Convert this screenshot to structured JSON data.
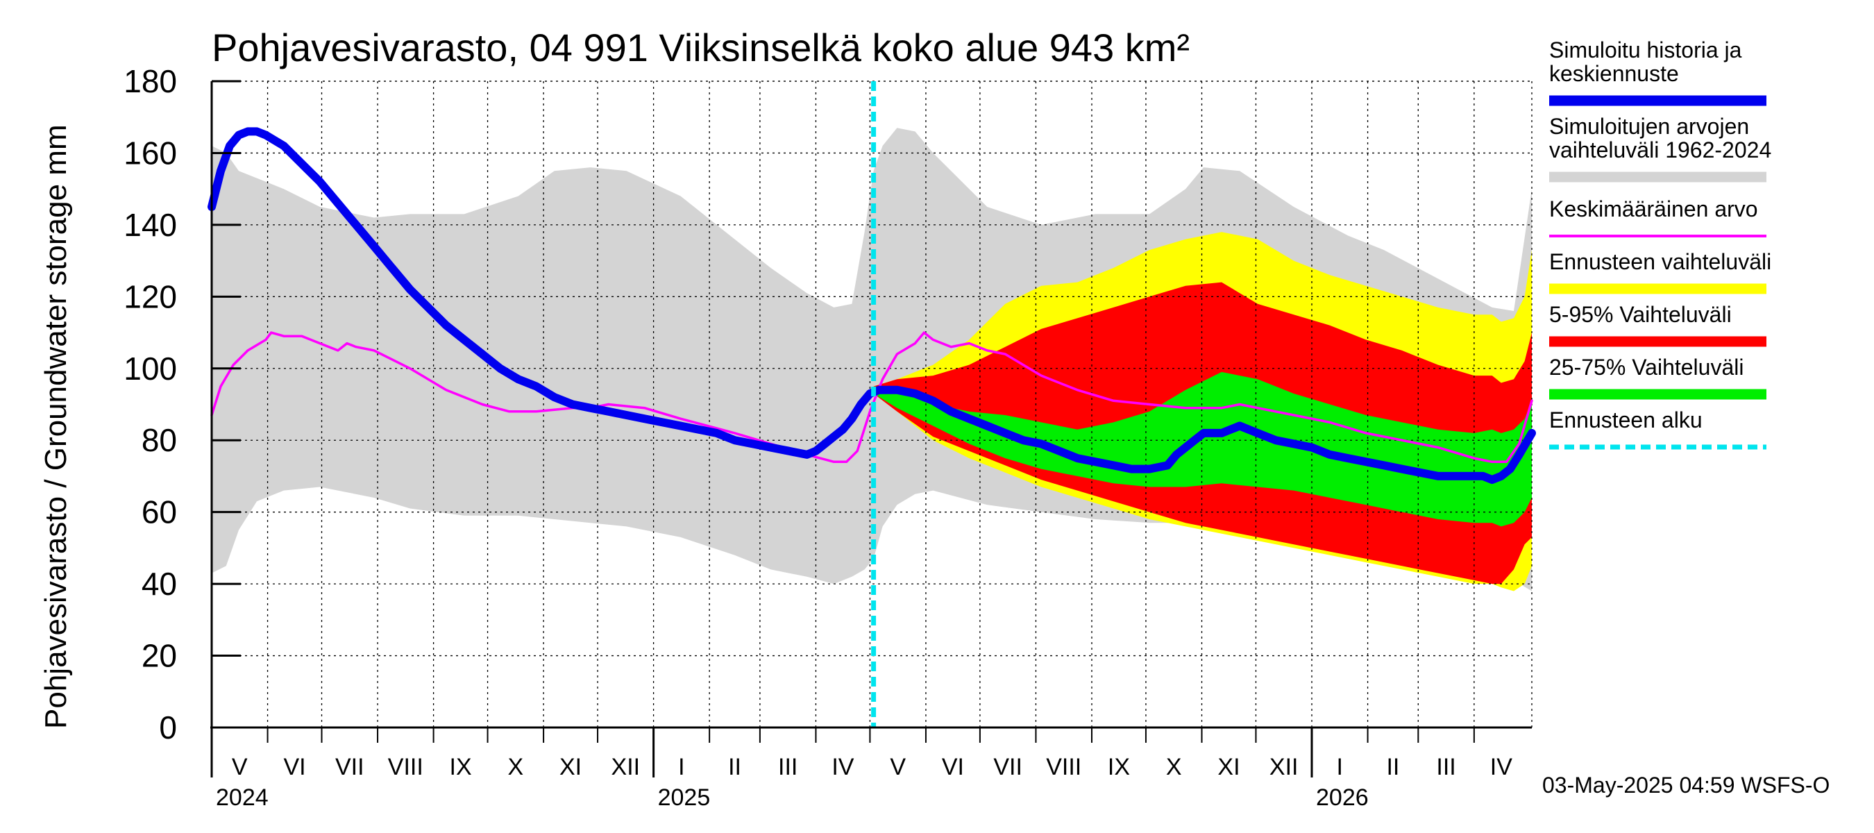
{
  "chart_data": {
    "type": "area",
    "title": "Pohjavesivarasto, 04 991 Viiksinselkä koko alue 943 km²",
    "ylabel": "Pohjavesivarasto / Groundwater storage   mm",
    "ylim": [
      0,
      180
    ],
    "yticks": [
      "0",
      "20",
      "40",
      "60",
      "80",
      "100",
      "120",
      "140",
      "160",
      "180"
    ],
    "months": [
      {
        "label": "V",
        "start": 0,
        "end": 31
      },
      {
        "label": "VI",
        "start": 31,
        "end": 61
      },
      {
        "label": "VII",
        "start": 61,
        "end": 92
      },
      {
        "label": "VIII",
        "start": 92,
        "end": 123
      },
      {
        "label": "IX",
        "start": 123,
        "end": 153
      },
      {
        "label": "X",
        "start": 153,
        "end": 184
      },
      {
        "label": "XI",
        "start": 184,
        "end": 214
      },
      {
        "label": "XII",
        "start": 214,
        "end": 245
      },
      {
        "label": "I",
        "start": 245,
        "end": 276
      },
      {
        "label": "II",
        "start": 276,
        "end": 304
      },
      {
        "label": "III",
        "start": 304,
        "end": 335
      },
      {
        "label": "IV",
        "start": 335,
        "end": 365
      },
      {
        "label": "V",
        "start": 365,
        "end": 396
      },
      {
        "label": "VI",
        "start": 396,
        "end": 426
      },
      {
        "label": "VII",
        "start": 426,
        "end": 457
      },
      {
        "label": "VIII",
        "start": 457,
        "end": 488
      },
      {
        "label": "IX",
        "start": 488,
        "end": 518
      },
      {
        "label": "X",
        "start": 518,
        "end": 549
      },
      {
        "label": "XI",
        "start": 549,
        "end": 579
      },
      {
        "label": "XII",
        "start": 579,
        "end": 610
      },
      {
        "label": "I",
        "start": 610,
        "end": 641
      },
      {
        "label": "II",
        "start": 641,
        "end": 669
      },
      {
        "label": "III",
        "start": 669,
        "end": 700
      },
      {
        "label": "IV",
        "start": 700,
        "end": 730
      }
    ],
    "years": [
      {
        "label": "2024",
        "day": 0
      },
      {
        "label": "2025",
        "day": 245
      },
      {
        "label": "2026",
        "day": 610
      }
    ],
    "x_range_days": [
      0,
      732
    ],
    "forecast_start_day": 367,
    "series": [
      {
        "name": "Simuloitujen arvojen vaihteluväli 1962-2024",
        "kind": "band",
        "color": "#d4d4d4",
        "x": [
          0,
          8,
          15,
          25,
          40,
          60,
          90,
          110,
          140,
          170,
          190,
          210,
          230,
          260,
          290,
          310,
          330,
          345,
          355,
          362,
          367,
          372,
          380,
          390,
          400,
          430,
          460,
          490,
          520,
          540,
          550,
          570,
          600,
          630,
          650,
          680,
          710,
          722,
          732
        ],
        "upper": [
          162,
          160,
          155,
          153,
          150,
          145,
          142,
          143,
          143,
          148,
          155,
          156,
          155,
          148,
          136,
          128,
          121,
          117,
          118,
          138,
          155,
          162,
          167,
          166,
          160,
          145,
          140,
          143,
          143,
          150,
          156,
          155,
          145,
          137,
          133,
          125,
          117,
          116,
          150
        ],
        "lower": [
          43,
          45,
          55,
          63,
          66,
          67,
          64,
          61,
          59,
          59,
          58,
          57,
          56,
          53,
          48,
          44,
          42,
          40,
          42,
          44,
          47,
          56,
          62,
          65,
          66,
          62,
          60,
          58,
          57,
          57,
          56,
          54,
          51,
          48,
          46,
          44,
          42,
          41,
          38
        ]
      },
      {
        "name": "Ennusteen vaihteluväli",
        "kind": "band",
        "color": "#ffff00",
        "x": [
          367,
          380,
          400,
          420,
          440,
          460,
          480,
          500,
          520,
          540,
          560,
          580,
          600,
          620,
          640,
          660,
          680,
          700,
          710,
          715,
          722,
          728,
          732
        ],
        "upper": [
          95,
          97,
          101,
          108,
          118,
          123,
          124,
          128,
          133,
          136,
          138,
          136,
          130,
          126,
          123,
          120,
          117,
          115,
          115,
          113,
          114,
          120,
          133
        ],
        "lower": [
          93,
          88,
          80,
          75,
          71,
          67,
          64,
          61,
          58,
          56,
          54,
          52,
          50,
          48,
          46,
          44,
          42,
          40,
          40,
          39,
          38,
          40,
          45
        ]
      },
      {
        "name": "5-95% Vaihteluväli",
        "kind": "band",
        "color": "#ff0000",
        "x": [
          367,
          380,
          400,
          420,
          440,
          460,
          480,
          500,
          520,
          540,
          560,
          580,
          600,
          620,
          640,
          660,
          680,
          700,
          710,
          715,
          722,
          728,
          732
        ],
        "upper": [
          95,
          97,
          98,
          101,
          106,
          111,
          114,
          117,
          120,
          123,
          124,
          118,
          115,
          112,
          108,
          105,
          101,
          98,
          98,
          96,
          97,
          102,
          110
        ],
        "lower": [
          93,
          88,
          81,
          77,
          73,
          69,
          66,
          63,
          60,
          57,
          55,
          53,
          51,
          49,
          47,
          45,
          43,
          41,
          40,
          40,
          44,
          51,
          53
        ]
      },
      {
        "name": "25-75% Vaihteluväli",
        "kind": "band",
        "color": "#00ee00",
        "x": [
          367,
          380,
          400,
          420,
          440,
          460,
          480,
          500,
          520,
          540,
          560,
          580,
          600,
          620,
          640,
          660,
          680,
          700,
          710,
          715,
          722,
          728,
          732
        ],
        "upper": [
          95,
          94,
          90,
          88,
          87,
          85,
          83,
          85,
          88,
          94,
          99,
          97,
          93,
          90,
          87,
          85,
          83,
          82,
          83,
          82,
          83,
          86,
          91
        ],
        "lower": [
          93,
          89,
          84,
          79,
          75,
          72,
          70,
          68,
          67,
          67,
          68,
          67,
          66,
          64,
          62,
          60,
          58,
          57,
          57,
          56,
          57,
          60,
          64
        ]
      },
      {
        "name": "Keskimääräinen arvo",
        "kind": "line",
        "color": "#ff00ff",
        "x": [
          0,
          5,
          12,
          20,
          30,
          33,
          40,
          50,
          60,
          70,
          75,
          80,
          90,
          110,
          130,
          150,
          165,
          180,
          200,
          210,
          220,
          240,
          260,
          290,
          310,
          330,
          345,
          352,
          358,
          365,
          372,
          380,
          390,
          395,
          400,
          410,
          420,
          430,
          440,
          460,
          480,
          500,
          520,
          540,
          560,
          570,
          580,
          600,
          620,
          640,
          660,
          680,
          700,
          710,
          718,
          725,
          732
        ],
        "y": [
          87,
          95,
          101,
          105,
          108,
          110,
          109,
          109,
          107,
          105,
          107,
          106,
          105,
          100,
          94,
          90,
          88,
          88,
          89,
          89,
          90,
          89,
          86,
          82,
          79,
          76,
          74,
          74,
          77,
          88,
          97,
          104,
          107,
          110,
          108,
          106,
          107,
          105,
          104,
          98,
          94,
          91,
          90,
          89,
          89,
          90,
          89,
          87,
          85,
          82,
          80,
          78,
          75,
          74,
          74,
          79,
          91
        ]
      },
      {
        "name": "Simuloitu historia ja keskiennuste",
        "kind": "line",
        "color": "#0000ee",
        "x": [
          0,
          5,
          10,
          15,
          20,
          25,
          30,
          40,
          50,
          60,
          70,
          80,
          90,
          100,
          110,
          120,
          130,
          140,
          150,
          160,
          170,
          180,
          190,
          200,
          210,
          220,
          230,
          240,
          250,
          260,
          270,
          280,
          290,
          300,
          310,
          320,
          330,
          335,
          340,
          345,
          350,
          355,
          360,
          365,
          370,
          380,
          390,
          400,
          410,
          420,
          430,
          440,
          450,
          460,
          470,
          480,
          490,
          500,
          510,
          520,
          530,
          535,
          540,
          545,
          550,
          555,
          560,
          565,
          570,
          580,
          590,
          600,
          610,
          620,
          630,
          640,
          650,
          660,
          670,
          680,
          690,
          700,
          705,
          710,
          715,
          720,
          725,
          732
        ],
        "y": [
          145,
          155,
          162,
          165,
          166,
          166,
          165,
          162,
          157,
          152,
          146,
          140,
          134,
          128,
          122,
          117,
          112,
          108,
          104,
          100,
          97,
          95,
          92,
          90,
          89,
          88,
          87,
          86,
          85,
          84,
          83,
          82,
          80,
          79,
          78,
          77,
          76,
          77,
          79,
          81,
          83,
          86,
          90,
          93,
          94,
          94,
          93,
          91,
          88,
          86,
          84,
          82,
          80,
          79,
          77,
          75,
          74,
          73,
          72,
          72,
          73,
          76,
          78,
          80,
          82,
          82,
          82,
          83,
          84,
          82,
          80,
          79,
          78,
          76,
          75,
          74,
          73,
          72,
          71,
          70,
          70,
          70,
          70,
          69,
          70,
          72,
          76,
          82
        ]
      },
      {
        "name": "Ennusteen alku",
        "kind": "vline",
        "color": "#00e5ee",
        "day": 367
      }
    ],
    "legend": [
      {
        "label": "Simuloitu historia ja keskiennuste",
        "lines": [
          "Simuloitu historia ja",
          "keskiennuste"
        ],
        "color": "#0000ee",
        "style": "solid"
      },
      {
        "label": "Simuloitujen arvojen vaihteluväli 1962-2024",
        "lines": [
          "Simuloitujen arvojen",
          "vaihteluväli 1962-2024"
        ],
        "color": "#d4d4d4",
        "style": "solid"
      },
      {
        "label": "Keskimääräinen arvo",
        "lines": [
          "Keskimääräinen arvo"
        ],
        "color": "#ff00ff",
        "style": "thin"
      },
      {
        "label": "Ennusteen vaihteluväli",
        "lines": [
          "Ennusteen vaihteluväli"
        ],
        "color": "#ffff00",
        "style": "solid"
      },
      {
        "label": "5-95% Vaihteluväli",
        "lines": [
          "5-95% Vaihteluväli"
        ],
        "color": "#ff0000",
        "style": "solid"
      },
      {
        "label": "25-75% Vaihteluväli",
        "lines": [
          "25-75% Vaihteluväli"
        ],
        "color": "#00ee00",
        "style": "solid"
      },
      {
        "label": "Ennusteen alku",
        "lines": [
          "Ennusteen alku"
        ],
        "color": "#00e5ee",
        "style": "dashed"
      }
    ],
    "footer": "03-May-2025 04:59 WSFS-O"
  }
}
